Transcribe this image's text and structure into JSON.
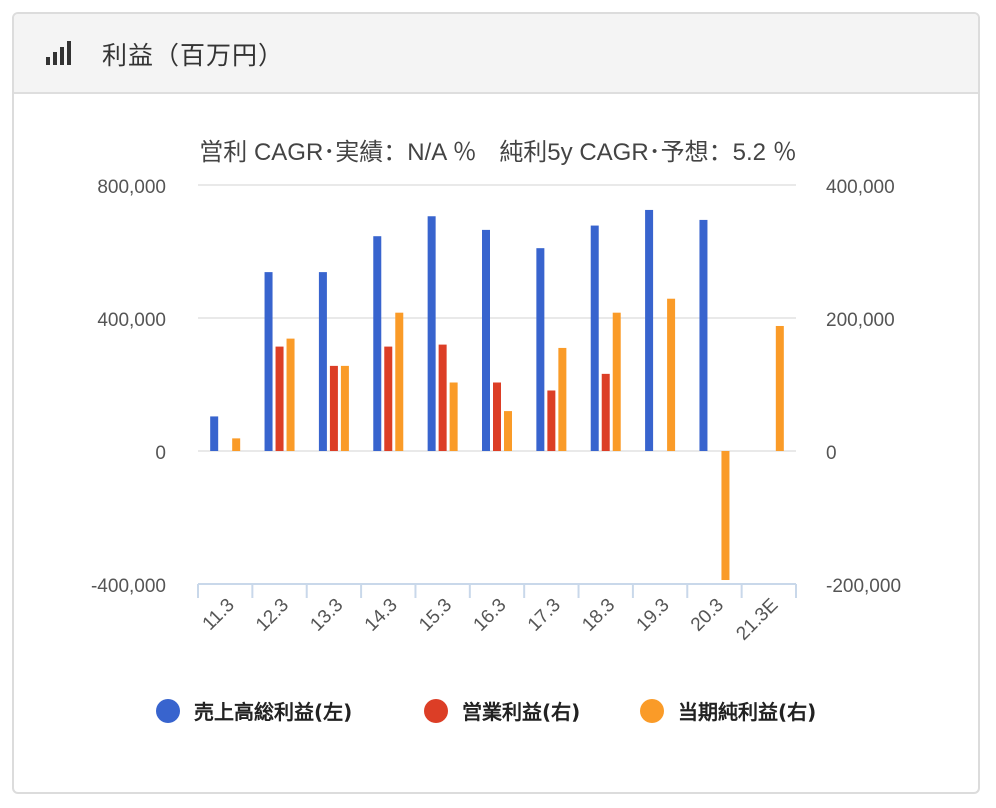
{
  "header": {
    "title": "利益（百万円）",
    "icon": "bar-signal-icon"
  },
  "subtitle": {
    "op_cagr": "営利 CAGR･実績：N/A ％",
    "net_cagr": "純利5y CAGR･予想：5.2 ％"
  },
  "colors": {
    "sales": "#3864CE",
    "operating": "#DC3E26",
    "net": "#FA9B28",
    "grid": "#e2e2e2",
    "axis": "#c9d8ea",
    "text": "#555555"
  },
  "chart_data": {
    "type": "bar",
    "categories": [
      "11.3",
      "12.3",
      "13.3",
      "14.3",
      "15.3",
      "16.3",
      "17.3",
      "18.3",
      "19.3",
      "20.3",
      "21.3E"
    ],
    "left_axis": {
      "ylim": [
        -400000,
        800000
      ],
      "ticks": [
        -400000,
        0,
        400000,
        800000
      ],
      "tick_labels": [
        "-400,000",
        "0",
        "400,000",
        "800,000"
      ]
    },
    "right_axis": {
      "ylim": [
        -200000,
        400000
      ],
      "ticks": [
        -200000,
        0,
        200000,
        400000
      ],
      "tick_labels": [
        "-200,000",
        "0",
        "200,000",
        "400,000"
      ]
    },
    "series": [
      {
        "name": "売上高総利益(左)",
        "axis": "left",
        "values": [
          104000,
          538000,
          538000,
          646000,
          706000,
          665000,
          610000,
          678000,
          725000,
          695000,
          null
        ]
      },
      {
        "name": "営業利益(右)",
        "axis": "right",
        "values": [
          null,
          157000,
          128000,
          157000,
          160000,
          103000,
          91000,
          116000,
          null,
          null,
          null
        ]
      },
      {
        "name": "当期純利益(右)",
        "axis": "right",
        "values": [
          19000,
          169000,
          128000,
          208000,
          103000,
          60000,
          155000,
          208000,
          229000,
          -194000,
          188000
        ]
      }
    ],
    "grid": true,
    "legend_position": "bottom"
  }
}
